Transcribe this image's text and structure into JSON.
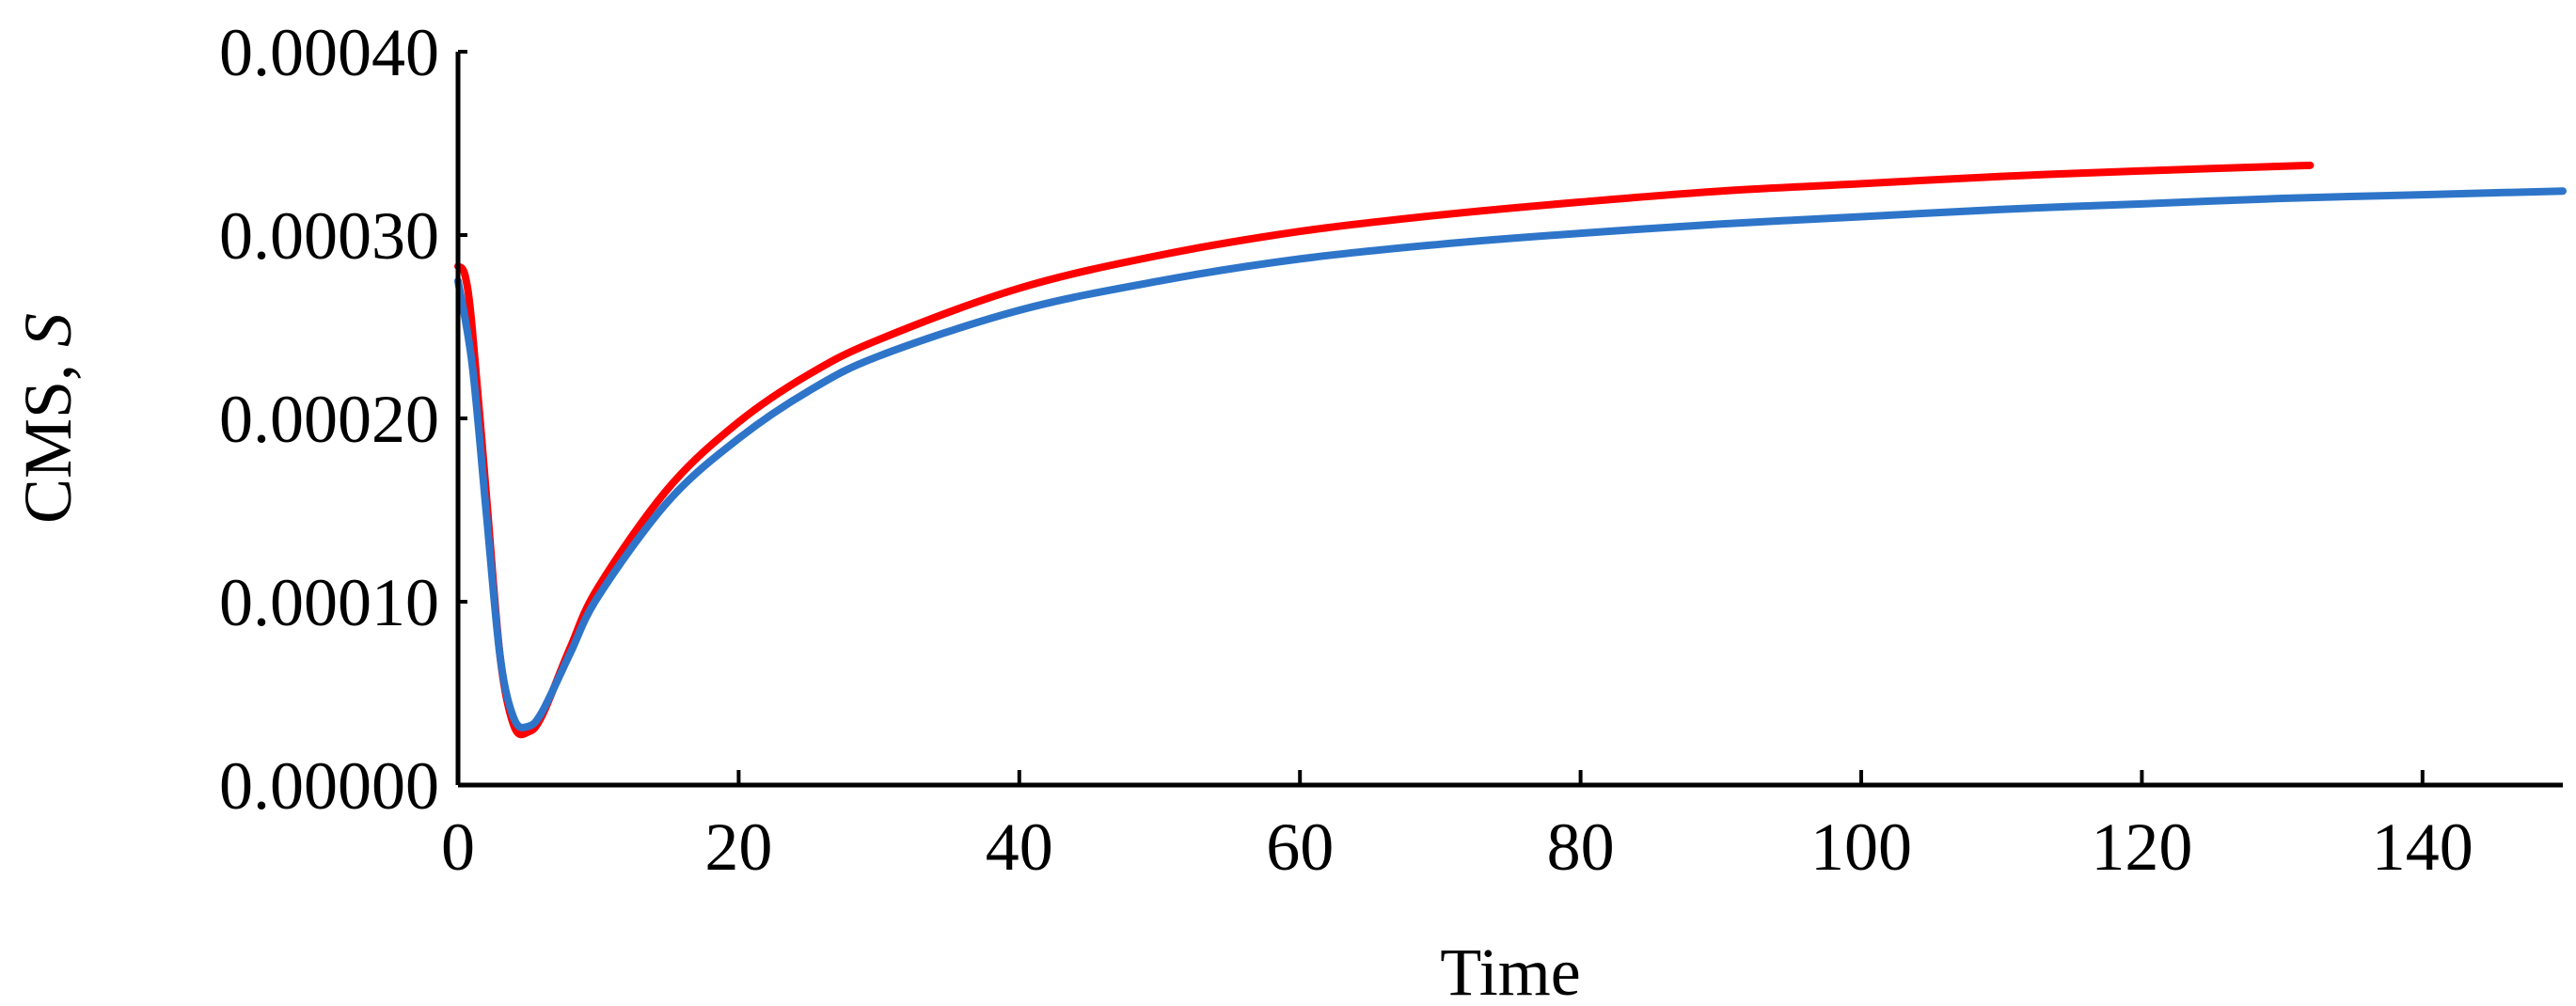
{
  "chart_data": {
    "type": "line",
    "title": "",
    "xlabel": "Time",
    "ylabel_main": "CMS, ",
    "ylabel_symbol": "S",
    "xlim": [
      0,
      150
    ],
    "ylim": [
      0,
      0.0004
    ],
    "x_ticks": [
      0,
      20,
      40,
      60,
      80,
      100,
      120,
      140
    ],
    "x_tick_labels": [
      "0",
      "20",
      "40",
      "60",
      "80",
      "100",
      "120",
      "140"
    ],
    "y_ticks": [
      0,
      0.0001,
      0.0002,
      0.0003,
      0.0004
    ],
    "y_tick_labels": [
      "0.00000",
      "0.00010",
      "0.00020",
      "0.00030",
      "0.00040"
    ],
    "grid": false,
    "legend": "none",
    "series": [
      {
        "name": "red series",
        "color": "#ff0000",
        "x": [
          0,
          0.5,
          1,
          2,
          3,
          4,
          5,
          6,
          8,
          10,
          15,
          20,
          25,
          30,
          40,
          50,
          60,
          70,
          80,
          90,
          100,
          110,
          120,
          132
        ],
        "y": [
          0.000283,
          0.000278,
          0.00025,
          0.00016,
          7e-05,
          3.2e-05,
          2.9e-05,
          3.8e-05,
          7.5e-05,
          0.000108,
          0.000162,
          0.000198,
          0.000224,
          0.000243,
          0.000271,
          0.000289,
          0.000302,
          0.000311,
          0.000318,
          0.000324,
          0.000328,
          0.000332,
          0.000335,
          0.000338
        ]
      },
      {
        "name": "blue series",
        "color": "#2e75c9",
        "x": [
          0,
          1,
          2,
          3,
          4,
          5,
          6,
          8,
          10,
          15,
          20,
          25,
          30,
          40,
          50,
          60,
          70,
          80,
          90,
          100,
          110,
          120,
          130,
          140,
          150
        ],
        "y": [
          0.000275,
          0.00023,
          0.00015,
          7e-05,
          3.6e-05,
          3.2e-05,
          4e-05,
          7.2e-05,
          0.000103,
          0.000155,
          0.000189,
          0.000215,
          0.000234,
          0.000259,
          0.000275,
          0.000287,
          0.000295,
          0.000301,
          0.000306,
          0.00031,
          0.000314,
          0.000317,
          0.00032,
          0.000322,
          0.000324
        ]
      }
    ]
  }
}
